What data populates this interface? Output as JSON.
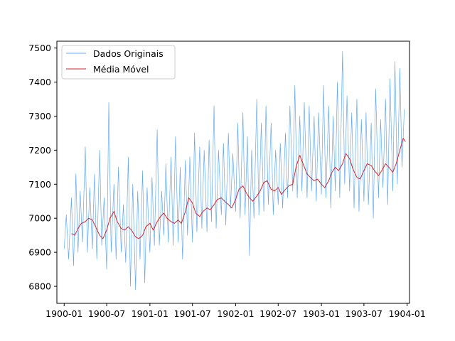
{
  "chart_data": {
    "type": "line",
    "title": "",
    "xlabel": "",
    "ylabel": "",
    "x_range": [
      "1899-12-01",
      "1904-01-11"
    ],
    "ylim": [
      6750,
      7520
    ],
    "x_ticks": [
      {
        "date": "1900-01-01",
        "label": "1900-01"
      },
      {
        "date": "1900-07-01",
        "label": "1900-07"
      },
      {
        "date": "1901-01-01",
        "label": "1901-01"
      },
      {
        "date": "1901-07-01",
        "label": "1901-07"
      },
      {
        "date": "1902-01-01",
        "label": "1902-01"
      },
      {
        "date": "1902-07-01",
        "label": "1902-07"
      },
      {
        "date": "1903-01-01",
        "label": "1903-01"
      },
      {
        "date": "1903-07-01",
        "label": "1903-07"
      },
      {
        "date": "1904-01-01",
        "label": "1904-01"
      }
    ],
    "y_ticks": [
      6800,
      6900,
      7000,
      7100,
      7200,
      7300,
      7400,
      7500
    ],
    "grid": false,
    "legend": "upper-left",
    "series": [
      {
        "name": "Dados Originais",
        "color": "#64aaf0",
        "points": [
          [
            "1900-01-01",
            6910
          ],
          [
            "1900-01-10",
            7010
          ],
          [
            "1900-01-20",
            6880
          ],
          [
            "1900-02-01",
            7060
          ],
          [
            "1900-02-10",
            6860
          ],
          [
            "1900-02-20",
            7130
          ],
          [
            "1900-03-01",
            6900
          ],
          [
            "1900-03-10",
            7080
          ],
          [
            "1900-03-20",
            6930
          ],
          [
            "1900-04-01",
            7210
          ],
          [
            "1900-04-10",
            6900
          ],
          [
            "1900-04-20",
            7090
          ],
          [
            "1900-05-01",
            6910
          ],
          [
            "1900-05-10",
            7130
          ],
          [
            "1900-05-20",
            6880
          ],
          [
            "1900-06-01",
            7200
          ],
          [
            "1900-06-10",
            6920
          ],
          [
            "1900-06-20",
            7060
          ],
          [
            "1900-07-01",
            6850
          ],
          [
            "1900-07-10",
            7340
          ],
          [
            "1900-07-20",
            6900
          ],
          [
            "1900-08-01",
            7100
          ],
          [
            "1900-08-10",
            6880
          ],
          [
            "1900-08-20",
            7150
          ],
          [
            "1900-09-01",
            6900
          ],
          [
            "1900-09-10",
            7040
          ],
          [
            "1900-09-20",
            6870
          ],
          [
            "1900-10-01",
            7180
          ],
          [
            "1900-10-10",
            6800
          ],
          [
            "1900-10-20",
            7100
          ],
          [
            "1900-11-01",
            6790
          ],
          [
            "1900-11-10",
            7080
          ],
          [
            "1900-11-20",
            6880
          ],
          [
            "1900-12-01",
            7140
          ],
          [
            "1900-12-10",
            6810
          ],
          [
            "1900-12-20",
            7090
          ],
          [
            "1901-01-01",
            6900
          ],
          [
            "1901-01-10",
            7120
          ],
          [
            "1901-01-20",
            6920
          ],
          [
            "1901-02-01",
            7260
          ],
          [
            "1901-02-10",
            6920
          ],
          [
            "1901-02-20",
            7080
          ],
          [
            "1901-03-01",
            6950
          ],
          [
            "1901-03-10",
            7160
          ],
          [
            "1901-03-20",
            6930
          ],
          [
            "1901-04-01",
            7180
          ],
          [
            "1901-04-10",
            6920
          ],
          [
            "1901-04-20",
            7240
          ],
          [
            "1901-05-01",
            6930
          ],
          [
            "1901-05-10",
            7150
          ],
          [
            "1901-05-20",
            6880
          ],
          [
            "1901-06-01",
            7170
          ],
          [
            "1901-06-10",
            6950
          ],
          [
            "1901-06-20",
            7180
          ],
          [
            "1901-07-01",
            6930
          ],
          [
            "1901-07-10",
            7250
          ],
          [
            "1901-07-20",
            6960
          ],
          [
            "1901-08-01",
            7210
          ],
          [
            "1901-08-10",
            6970
          ],
          [
            "1901-08-20",
            7200
          ],
          [
            "1901-09-01",
            6960
          ],
          [
            "1901-09-10",
            7230
          ],
          [
            "1901-09-20",
            6990
          ],
          [
            "1901-10-01",
            7330
          ],
          [
            "1901-10-10",
            6970
          ],
          [
            "1901-10-20",
            7200
          ],
          [
            "1901-11-01",
            7010
          ],
          [
            "1901-11-10",
            7220
          ],
          [
            "1901-11-20",
            6980
          ],
          [
            "1901-12-01",
            7250
          ],
          [
            "1901-12-10",
            7030
          ],
          [
            "1901-12-20",
            7190
          ],
          [
            "1902-01-01",
            7020
          ],
          [
            "1902-01-10",
            7280
          ],
          [
            "1902-01-20",
            7000
          ],
          [
            "1902-02-01",
            7310
          ],
          [
            "1902-02-10",
            7010
          ],
          [
            "1902-02-20",
            7240
          ],
          [
            "1902-03-01",
            6890
          ],
          [
            "1902-03-10",
            7200
          ],
          [
            "1902-03-20",
            7000
          ],
          [
            "1902-04-01",
            7350
          ],
          [
            "1902-04-10",
            7010
          ],
          [
            "1902-04-20",
            7280
          ],
          [
            "1902-05-01",
            7020
          ],
          [
            "1902-05-10",
            7330
          ],
          [
            "1902-05-20",
            7040
          ],
          [
            "1902-06-01",
            7280
          ],
          [
            "1902-06-10",
            7010
          ],
          [
            "1902-06-20",
            7200
          ],
          [
            "1902-07-01",
            7040
          ],
          [
            "1902-07-10",
            7220
          ],
          [
            "1902-07-20",
            7030
          ],
          [
            "1902-08-01",
            7250
          ],
          [
            "1902-08-10",
            7060
          ],
          [
            "1902-08-20",
            7330
          ],
          [
            "1902-09-01",
            7080
          ],
          [
            "1902-09-10",
            7390
          ],
          [
            "1902-09-20",
            7060
          ],
          [
            "1902-10-01",
            7300
          ],
          [
            "1902-10-10",
            7080
          ],
          [
            "1902-10-20",
            7340
          ],
          [
            "1902-11-01",
            7060
          ],
          [
            "1902-11-10",
            7330
          ],
          [
            "1902-11-20",
            7080
          ],
          [
            "1902-12-01",
            7300
          ],
          [
            "1902-12-10",
            7050
          ],
          [
            "1902-12-20",
            7310
          ],
          [
            "1903-01-01",
            7070
          ],
          [
            "1903-01-10",
            7390
          ],
          [
            "1903-01-20",
            7060
          ],
          [
            "1903-02-01",
            7330
          ],
          [
            "1903-02-10",
            7030
          ],
          [
            "1903-02-20",
            7300
          ],
          [
            "1903-03-01",
            7080
          ],
          [
            "1903-03-10",
            7400
          ],
          [
            "1903-03-20",
            7060
          ],
          [
            "1903-04-01",
            7490
          ],
          [
            "1903-04-10",
            7100
          ],
          [
            "1903-04-20",
            7360
          ],
          [
            "1903-05-01",
            7080
          ],
          [
            "1903-05-10",
            7310
          ],
          [
            "1903-05-20",
            7030
          ],
          [
            "1903-06-01",
            7350
          ],
          [
            "1903-06-10",
            7020
          ],
          [
            "1903-06-20",
            7290
          ],
          [
            "1903-07-01",
            7050
          ],
          [
            "1903-07-10",
            7310
          ],
          [
            "1903-07-20",
            7040
          ],
          [
            "1903-08-01",
            7280
          ],
          [
            "1903-08-10",
            7000
          ],
          [
            "1903-08-20",
            7380
          ],
          [
            "1903-09-01",
            7060
          ],
          [
            "1903-09-10",
            7290
          ],
          [
            "1903-09-20",
            7090
          ],
          [
            "1903-10-01",
            7350
          ],
          [
            "1903-10-10",
            7040
          ],
          [
            "1903-10-20",
            7410
          ],
          [
            "1903-11-01",
            7080
          ],
          [
            "1903-11-10",
            7460
          ],
          [
            "1903-11-20",
            7100
          ],
          [
            "1903-12-01",
            7440
          ],
          [
            "1903-12-10",
            7150
          ],
          [
            "1903-12-20",
            7320
          ]
        ]
      },
      {
        "name": "Média Móvel",
        "color": "#d62728",
        "points": [
          [
            "1900-02-01",
            6955
          ],
          [
            "1900-02-15",
            6950
          ],
          [
            "1900-03-01",
            6970
          ],
          [
            "1900-03-15",
            6985
          ],
          [
            "1900-04-01",
            6990
          ],
          [
            "1900-04-15",
            7000
          ],
          [
            "1900-05-01",
            6995
          ],
          [
            "1900-05-15",
            6975
          ],
          [
            "1900-06-01",
            6950
          ],
          [
            "1900-06-15",
            6940
          ],
          [
            "1900-07-01",
            6965
          ],
          [
            "1900-07-15",
            7000
          ],
          [
            "1900-08-01",
            7020
          ],
          [
            "1900-08-15",
            6990
          ],
          [
            "1900-09-01",
            6970
          ],
          [
            "1900-09-15",
            6965
          ],
          [
            "1900-10-01",
            6975
          ],
          [
            "1900-10-15",
            6965
          ],
          [
            "1900-11-01",
            6945
          ],
          [
            "1900-11-15",
            6940
          ],
          [
            "1900-12-01",
            6950
          ],
          [
            "1900-12-15",
            6975
          ],
          [
            "1901-01-01",
            6985
          ],
          [
            "1901-01-15",
            6965
          ],
          [
            "1901-02-01",
            6990
          ],
          [
            "1901-02-15",
            7005
          ],
          [
            "1901-03-01",
            7015
          ],
          [
            "1901-03-15",
            7000
          ],
          [
            "1901-04-01",
            6990
          ],
          [
            "1901-04-15",
            6985
          ],
          [
            "1901-05-01",
            6995
          ],
          [
            "1901-05-15",
            6985
          ],
          [
            "1901-06-01",
            7020
          ],
          [
            "1901-06-15",
            7060
          ],
          [
            "1901-07-01",
            7045
          ],
          [
            "1901-07-15",
            7015
          ],
          [
            "1901-08-01",
            7005
          ],
          [
            "1901-08-15",
            7020
          ],
          [
            "1901-09-01",
            7030
          ],
          [
            "1901-09-15",
            7025
          ],
          [
            "1901-10-01",
            7040
          ],
          [
            "1901-10-15",
            7055
          ],
          [
            "1901-11-01",
            7060
          ],
          [
            "1901-11-15",
            7050
          ],
          [
            "1901-12-01",
            7040
          ],
          [
            "1901-12-15",
            7030
          ],
          [
            "1902-01-01",
            7055
          ],
          [
            "1902-01-15",
            7085
          ],
          [
            "1902-02-01",
            7095
          ],
          [
            "1902-02-15",
            7075
          ],
          [
            "1902-03-01",
            7060
          ],
          [
            "1902-03-15",
            7050
          ],
          [
            "1902-04-01",
            7065
          ],
          [
            "1902-04-15",
            7080
          ],
          [
            "1902-05-01",
            7105
          ],
          [
            "1902-05-15",
            7110
          ],
          [
            "1902-06-01",
            7085
          ],
          [
            "1902-06-15",
            7080
          ],
          [
            "1902-07-01",
            7090
          ],
          [
            "1902-07-15",
            7070
          ],
          [
            "1902-08-01",
            7085
          ],
          [
            "1902-08-15",
            7095
          ],
          [
            "1902-09-01",
            7100
          ],
          [
            "1902-09-15",
            7150
          ],
          [
            "1902-10-01",
            7185
          ],
          [
            "1902-10-15",
            7160
          ],
          [
            "1902-11-01",
            7130
          ],
          [
            "1902-11-15",
            7120
          ],
          [
            "1902-12-01",
            7110
          ],
          [
            "1902-12-15",
            7115
          ],
          [
            "1903-01-01",
            7100
          ],
          [
            "1903-01-15",
            7090
          ],
          [
            "1903-02-01",
            7110
          ],
          [
            "1903-02-15",
            7135
          ],
          [
            "1903-03-01",
            7150
          ],
          [
            "1903-03-15",
            7140
          ],
          [
            "1903-04-01",
            7160
          ],
          [
            "1903-04-15",
            7190
          ],
          [
            "1903-05-01",
            7175
          ],
          [
            "1903-05-15",
            7145
          ],
          [
            "1903-06-01",
            7120
          ],
          [
            "1903-06-15",
            7115
          ],
          [
            "1903-07-01",
            7140
          ],
          [
            "1903-07-15",
            7160
          ],
          [
            "1903-08-01",
            7155
          ],
          [
            "1903-08-15",
            7140
          ],
          [
            "1903-09-01",
            7125
          ],
          [
            "1903-09-15",
            7140
          ],
          [
            "1903-10-01",
            7160
          ],
          [
            "1903-10-15",
            7150
          ],
          [
            "1903-11-01",
            7135
          ],
          [
            "1903-11-15",
            7160
          ],
          [
            "1903-12-01",
            7200
          ],
          [
            "1903-12-15",
            7235
          ],
          [
            "1903-12-25",
            7225
          ]
        ]
      }
    ]
  }
}
